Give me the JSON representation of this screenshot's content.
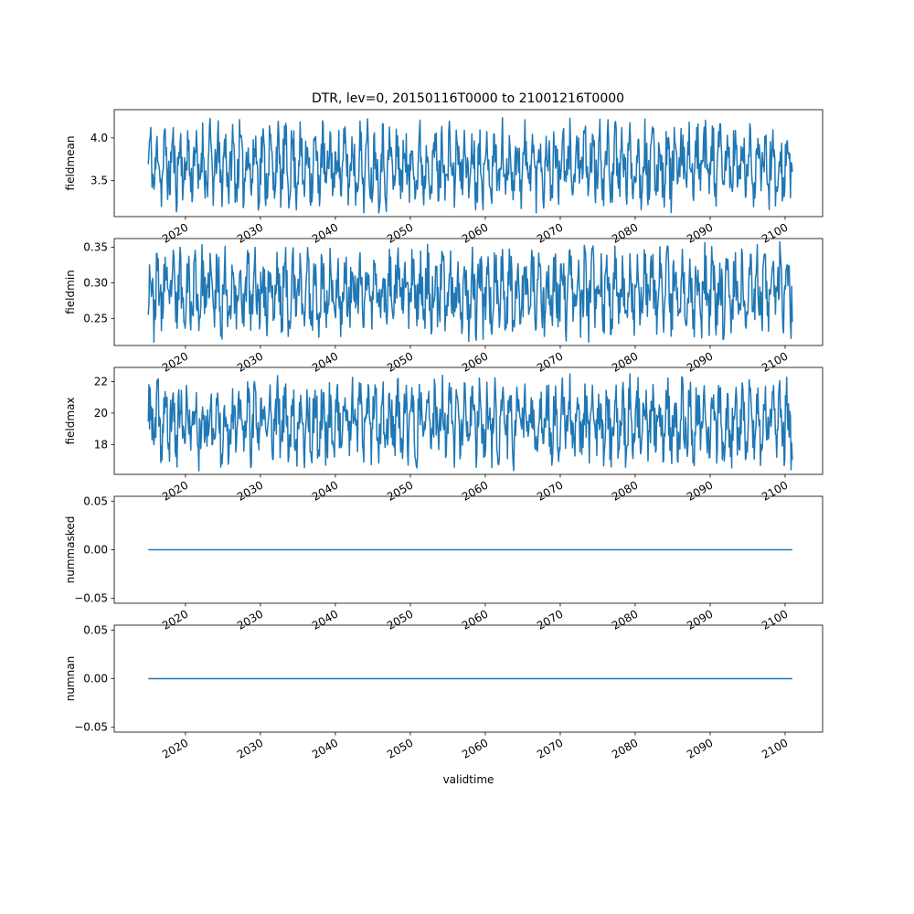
{
  "figure": {
    "title": "DTR, lev=0, 20150116T0000 to 21001216T0000"
  },
  "chart_data": [
    {
      "type": "line",
      "ylabel": "fieldmean",
      "xlabel": "",
      "xlim": [
        2010.5,
        2105.0
      ],
      "ylim": [
        3.08,
        4.33
      ],
      "yticks": [
        3.5,
        4.0
      ],
      "ytick_labels": [
        "3.5",
        "4.0"
      ],
      "xticks": [
        2020,
        2030,
        2040,
        2050,
        2060,
        2070,
        2080,
        2090,
        2100
      ],
      "xtick_labels": [
        "2020",
        "2030",
        "2040",
        "2050",
        "2060",
        "2070",
        "2080",
        "2090",
        "2100"
      ],
      "color": "#1f77b4",
      "series": [
        {
          "x_start": "2015-01",
          "x_end": "2100-12",
          "values": []
        }
      ],
      "sample_range": [
        3.12,
        4.25
      ],
      "seed": 11
    },
    {
      "type": "line",
      "ylabel": "fieldmin",
      "xlabel": "",
      "xlim": [
        2010.5,
        2105.0
      ],
      "ylim": [
        0.212,
        0.362
      ],
      "yticks": [
        0.25,
        0.3,
        0.35
      ],
      "ytick_labels": [
        "0.25",
        "0.30",
        "0.35"
      ],
      "xticks": [
        2020,
        2030,
        2040,
        2050,
        2060,
        2070,
        2080,
        2090,
        2100
      ],
      "xtick_labels": [
        "2020",
        "2030",
        "2040",
        "2050",
        "2060",
        "2070",
        "2080",
        "2090",
        "2100"
      ],
      "color": "#1f77b4",
      "series": [
        {
          "x_start": "2015-01",
          "x_end": "2100-12",
          "values": []
        }
      ],
      "sample_range": [
        0.216,
        0.358
      ],
      "seed": 23
    },
    {
      "type": "line",
      "ylabel": "fieldmax",
      "xlabel": "",
      "xlim": [
        2010.5,
        2105.0
      ],
      "ylim": [
        16.1,
        22.9
      ],
      "yticks": [
        18,
        20,
        22
      ],
      "ytick_labels": [
        "18",
        "20",
        "22"
      ],
      "xticks": [
        2020,
        2030,
        2040,
        2050,
        2060,
        2070,
        2080,
        2090,
        2100
      ],
      "xtick_labels": [
        "2020",
        "2030",
        "2040",
        "2050",
        "2060",
        "2070",
        "2080",
        "2090",
        "2100"
      ],
      "color": "#1f77b4",
      "series": [
        {
          "x_start": "2015-01",
          "x_end": "2100-12",
          "values": []
        }
      ],
      "sample_range": [
        16.3,
        22.5
      ],
      "seed": 37
    },
    {
      "type": "line",
      "ylabel": "nummasked",
      "xlabel": "",
      "xlim": [
        2010.5,
        2105.0
      ],
      "ylim": [
        -0.055,
        0.055
      ],
      "yticks": [
        -0.05,
        0.0,
        0.05
      ],
      "ytick_labels": [
        "−0.05",
        "0.00",
        "0.05"
      ],
      "xticks": [
        2020,
        2030,
        2040,
        2050,
        2060,
        2070,
        2080,
        2090,
        2100
      ],
      "xtick_labels": [
        "2020",
        "2030",
        "2040",
        "2050",
        "2060",
        "2070",
        "2080",
        "2090",
        "2100"
      ],
      "color": "#1f77b4",
      "series": [
        {
          "x": [
            "2015-01",
            "2100-12"
          ],
          "values": [
            0,
            0
          ]
        }
      ]
    },
    {
      "type": "line",
      "ylabel": "numnan",
      "xlabel": "validtime",
      "xlim": [
        2010.5,
        2105.0
      ],
      "ylim": [
        -0.055,
        0.055
      ],
      "yticks": [
        -0.05,
        0.0,
        0.05
      ],
      "ytick_labels": [
        "−0.05",
        "0.00",
        "0.05"
      ],
      "xticks": [
        2020,
        2030,
        2040,
        2050,
        2060,
        2070,
        2080,
        2090,
        2100
      ],
      "xtick_labels": [
        "2020",
        "2030",
        "2040",
        "2050",
        "2060",
        "2070",
        "2080",
        "2090",
        "2100"
      ],
      "color": "#1f77b4",
      "series": [
        {
          "x": [
            "2015-01",
            "2100-12"
          ],
          "values": [
            0,
            0
          ]
        }
      ]
    }
  ]
}
